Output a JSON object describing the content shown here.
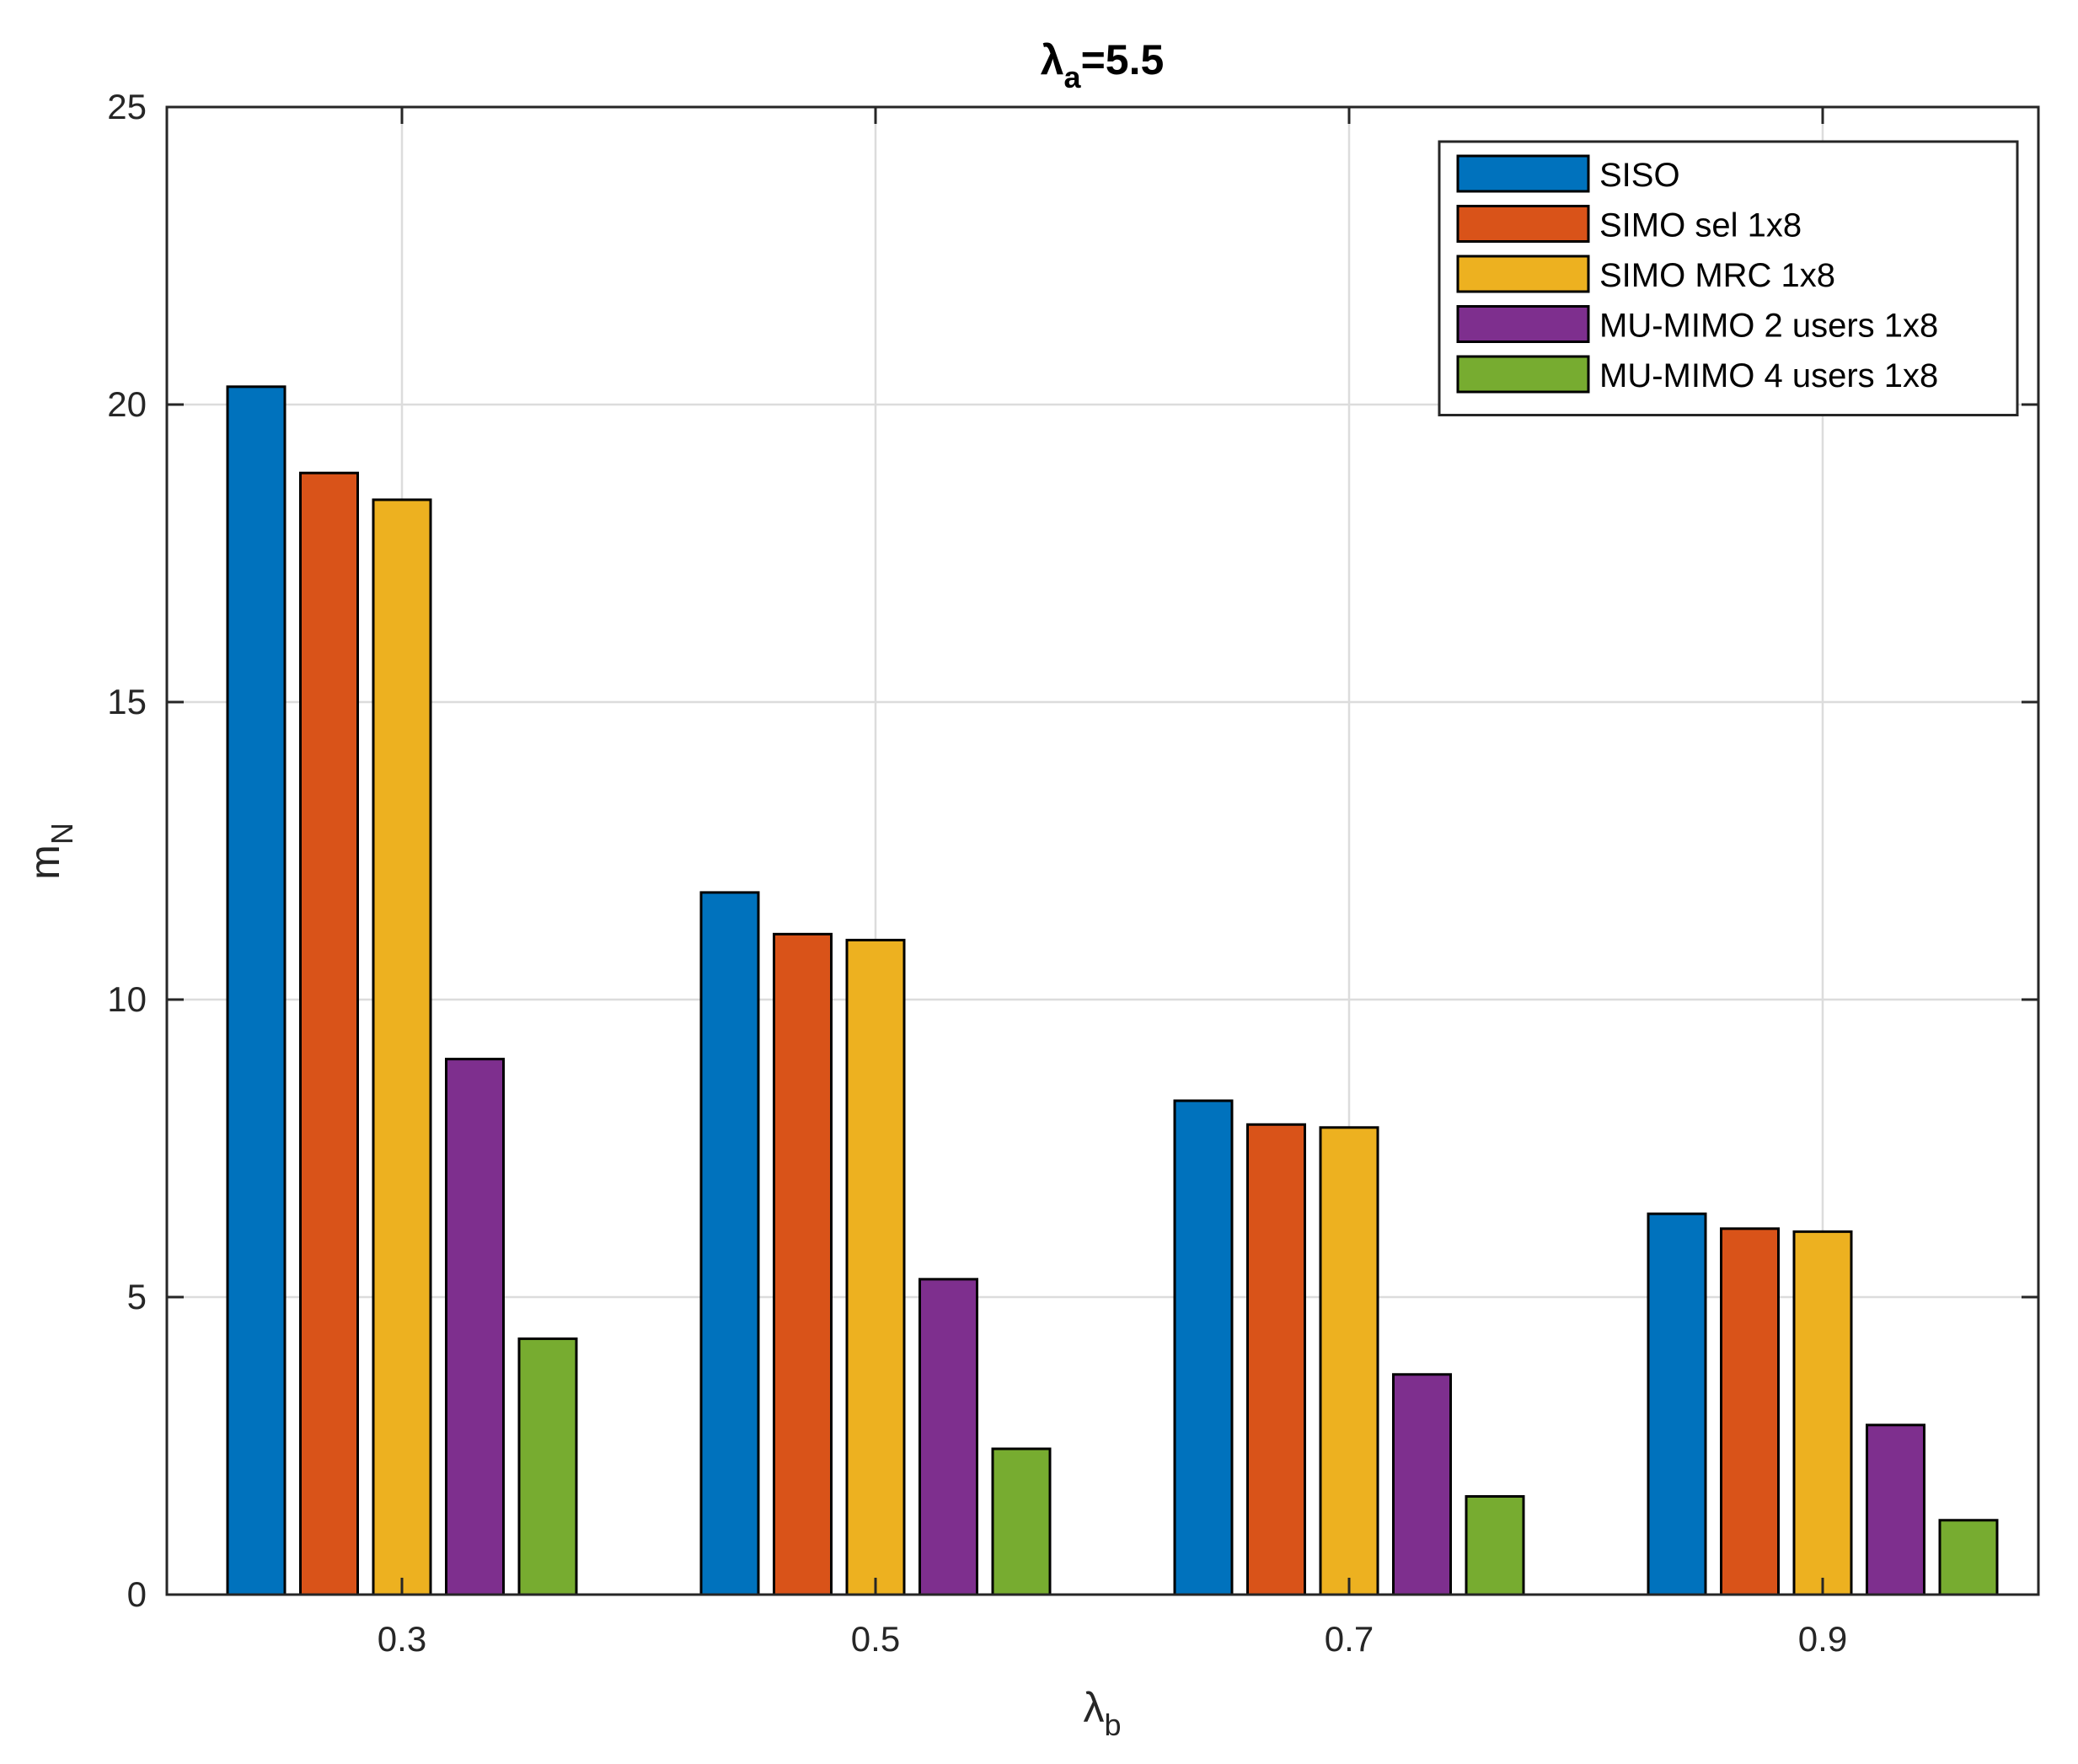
{
  "chart_data": {
    "type": "bar",
    "title": {
      "symbol": "λ",
      "subscript": "a",
      "suffix": "=5.5"
    },
    "xlabel": {
      "symbol": "λ",
      "subscript": "b"
    },
    "ylabel": {
      "symbol": "m",
      "subscript": "N"
    },
    "categories": [
      "0.3",
      "0.5",
      "0.7",
      "0.9"
    ],
    "ylim": [
      0,
      25
    ],
    "yticks": [
      "0",
      "5",
      "10",
      "15",
      "20",
      "25"
    ],
    "grid": true,
    "legend_position": "top-right",
    "series": [
      {
        "name": "SISO",
        "color": "#0072BD",
        "values": [
          20.3,
          11.8,
          8.3,
          6.4
        ]
      },
      {
        "name": "SIMO sel 1x8",
        "color": "#D95319",
        "values": [
          18.85,
          11.1,
          7.9,
          6.15
        ]
      },
      {
        "name": "SIMO MRC 1x8",
        "color": "#EDB120",
        "values": [
          18.4,
          11.0,
          7.85,
          6.1
        ]
      },
      {
        "name": "MU-MIMO 2 users 1x8",
        "color": "#7E2F8E",
        "values": [
          9.0,
          5.3,
          3.7,
          2.85
        ]
      },
      {
        "name": "MU-MIMO 4 users 1x8",
        "color": "#77AC30",
        "values": [
          4.3,
          2.45,
          1.65,
          1.25
        ]
      }
    ]
  }
}
